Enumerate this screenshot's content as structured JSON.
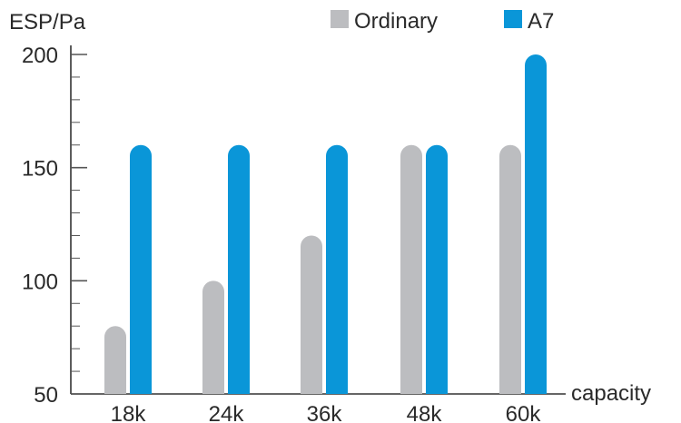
{
  "chart_data": {
    "type": "bar",
    "title": "",
    "xlabel": "capacity",
    "ylabel": "ESP/Pa",
    "categories": [
      "18k",
      "24k",
      "36k",
      "48k",
      "60k"
    ],
    "series": [
      {
        "name": "Ordinary",
        "color": "#bcbdc0",
        "values": [
          80,
          100,
          120,
          160,
          160
        ]
      },
      {
        "name": "A7",
        "color": "#0a96d8",
        "values": [
          160,
          160,
          160,
          160,
          200
        ]
      }
    ],
    "ylim": [
      50,
      200
    ],
    "yticks": [
      50,
      100,
      150,
      200
    ],
    "minor_tick_step": 10,
    "grid": false,
    "legend_position": "top-right"
  }
}
